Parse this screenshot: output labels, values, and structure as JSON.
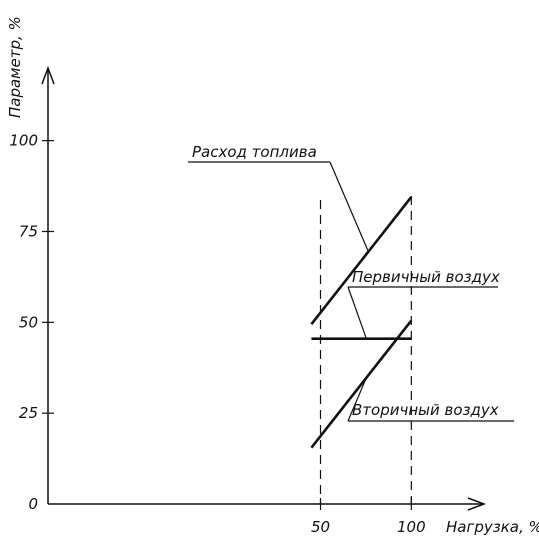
{
  "chart_data": {
    "type": "line",
    "xlabel": "Нагрузка, %",
    "ylabel": "Параметр, %",
    "xlim": [
      -100,
      140
    ],
    "ylim": [
      0,
      120
    ],
    "x_ticks": [
      "50",
      "100"
    ],
    "y_ticks": [
      "0",
      "25",
      "50",
      "75",
      "100"
    ],
    "y_tick_values": [
      0,
      25,
      50,
      75,
      100
    ],
    "reference_lines_x": [
      50,
      100
    ],
    "grid": false,
    "series": [
      {
        "name": "Расход топлива",
        "x": [
          45,
          100
        ],
        "y": [
          49.5,
          84.5
        ]
      },
      {
        "name": "Первичный воздух",
        "x": [
          45,
          100
        ],
        "y": [
          45.5,
          45.5
        ]
      },
      {
        "name": "Вторичный воздух",
        "x": [
          45,
          100
        ],
        "y": [
          15.5,
          50.5
        ]
      }
    ]
  }
}
